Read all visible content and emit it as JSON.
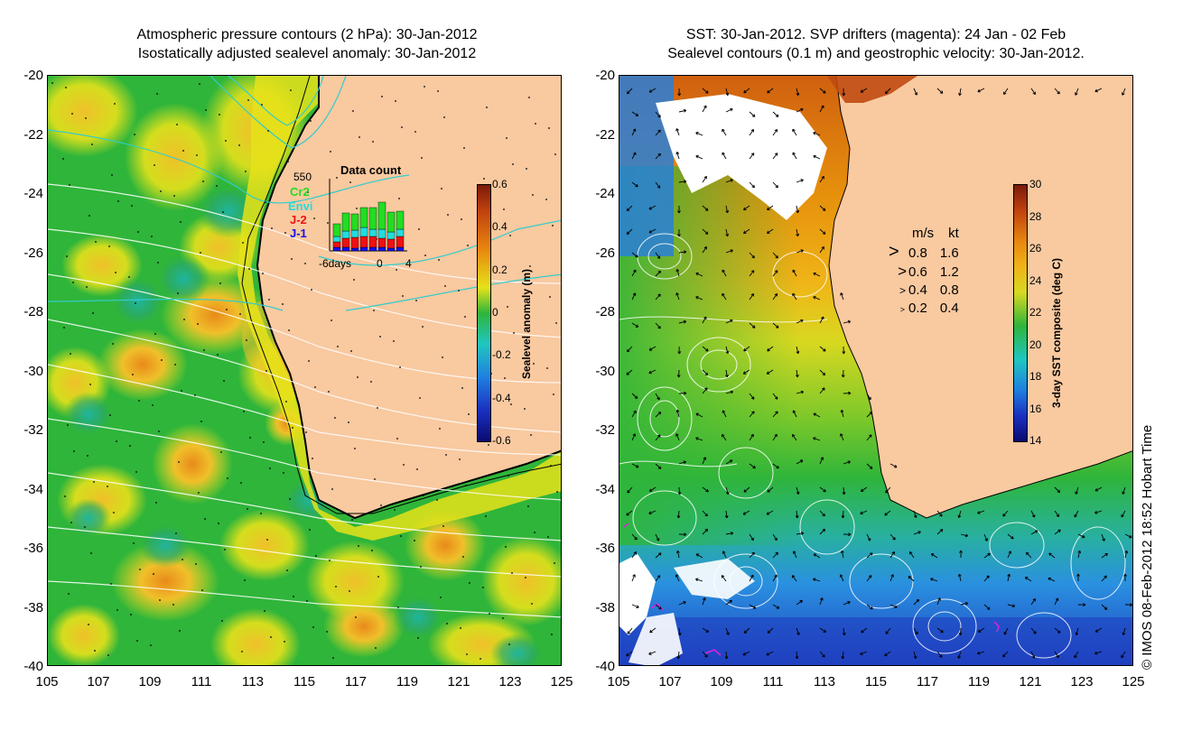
{
  "left_panel": {
    "title_line1": "Atmospheric pressure contours (2 hPa): 30-Jan-2012",
    "title_line2": "Isostatically adjusted sealevel anomaly: 30-Jan-2012",
    "y_ticks": [
      "-20",
      "-22",
      "-24",
      "-26",
      "-28",
      "-30",
      "-32",
      "-34",
      "-36",
      "-38",
      "-40"
    ],
    "x_ticks": [
      "105",
      "107",
      "109",
      "111",
      "113",
      "115",
      "117",
      "119",
      "121",
      "123",
      "125"
    ],
    "inset": {
      "title": "Data count",
      "max_label": "550",
      "legend": [
        {
          "label": "Cr2",
          "color": "#22dd22"
        },
        {
          "label": "Envi",
          "color": "#22dddd"
        },
        {
          "label": "J-2",
          "color": "#ee1111"
        },
        {
          "label": "J-1",
          "color": "#1111ee"
        }
      ],
      "x_labels": [
        "-6days",
        "0",
        "4"
      ]
    },
    "colorbar": {
      "label": "Sealevel anomaly (m)",
      "ticks": [
        "0.6",
        "0.4",
        "0.2",
        "0",
        "-0.2",
        "-0.4",
        "-0.6"
      ]
    }
  },
  "right_panel": {
    "title_line1": "SST: 30-Jan-2012. SVP drifters (magenta): 24 Jan - 02 Feb",
    "title_line2": "Sealevel contours (0.1 m) and geostrophic velocity: 30-Jan-2012.",
    "y_ticks": [
      "-20",
      "-22",
      "-24",
      "-26",
      "-28",
      "-30",
      "-32",
      "-34",
      "-36",
      "-38",
      "-40"
    ],
    "x_ticks": [
      "105",
      "107",
      "109",
      "111",
      "113",
      "115",
      "117",
      "119",
      "121",
      "123",
      "125"
    ],
    "velocity_legend": {
      "header_ms": "m/s",
      "header_kt": "kt",
      "rows": [
        {
          "ms": "0.8",
          "kt": "1.6"
        },
        {
          "ms": "0.6",
          "kt": "1.2"
        },
        {
          "ms": "0.4",
          "kt": "0.8"
        },
        {
          "ms": "0.2",
          "kt": "0.4"
        }
      ]
    },
    "colorbar": {
      "label": "3-day SST composite (deg C)",
      "ticks": [
        "30",
        "28",
        "26",
        "24",
        "22",
        "20",
        "18",
        "16",
        "14"
      ]
    }
  },
  "copyright": "© IMOS 08-Feb-2012 18:52 Hobart Time",
  "colors": {
    "land": "#f9c9a0",
    "sea_green": "#2fb53a",
    "sea_yellow": "#e6e21a",
    "coast": "#000000",
    "contour_white": "#ffffff",
    "contour_cyan": "#33cccc",
    "sst_orange": "#e6900c",
    "sst_blue": "#1f5fd0"
  }
}
